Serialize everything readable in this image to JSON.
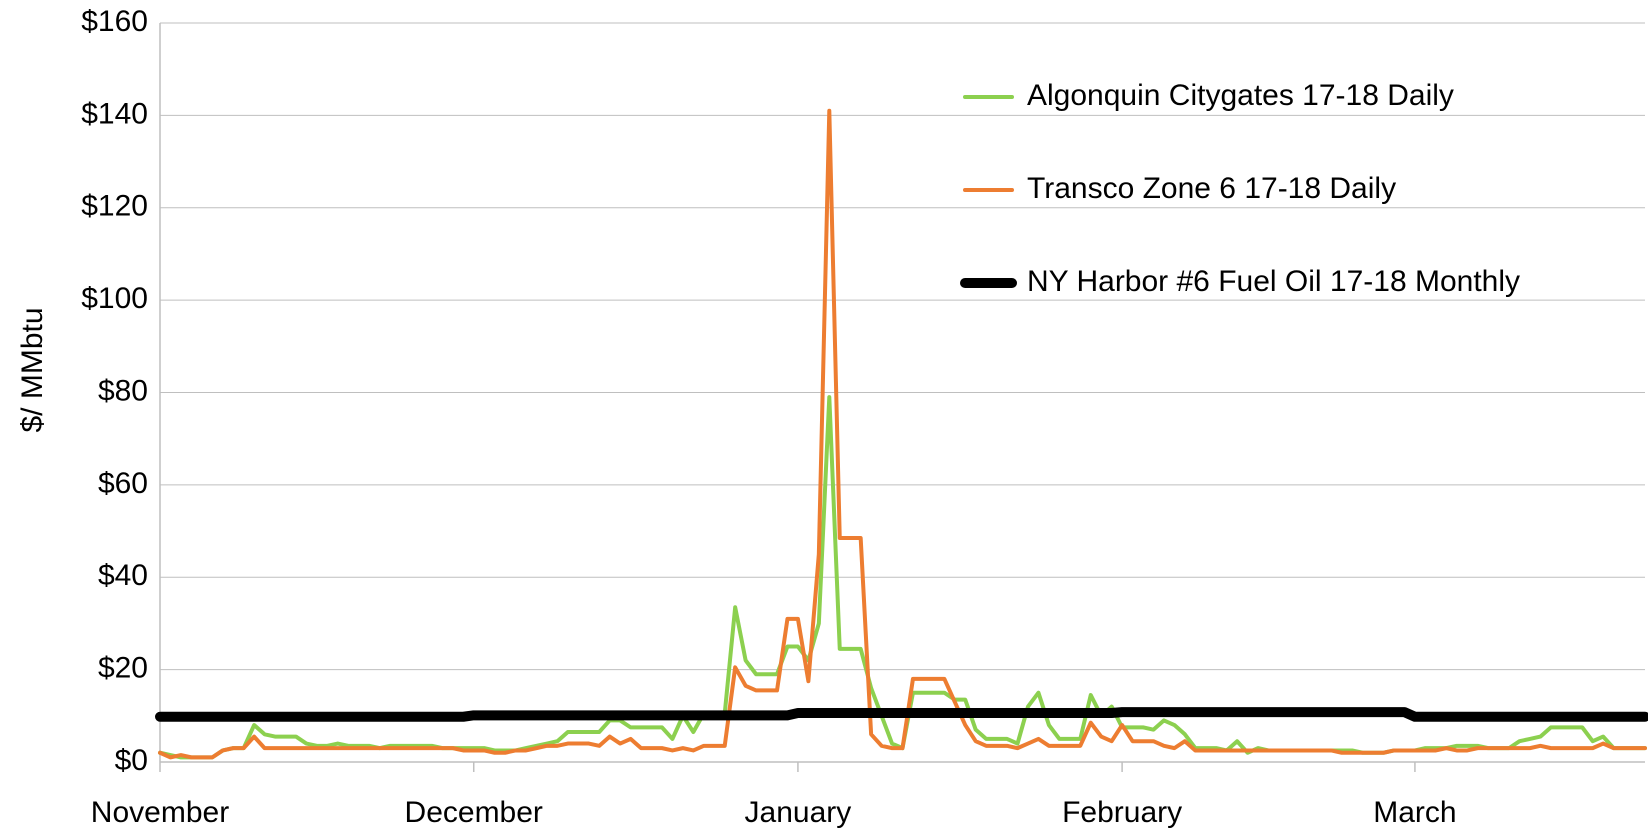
{
  "chart_data": {
    "type": "line",
    "y_label": "$/ MMbtu",
    "categories": [
      "November",
      null,
      null,
      null,
      null,
      null,
      null,
      null,
      null,
      null,
      null,
      null,
      null,
      null,
      null,
      null,
      null,
      null,
      null,
      null,
      null,
      null,
      null,
      null,
      null,
      null,
      null,
      null,
      null,
      null,
      "December",
      null,
      null,
      null,
      null,
      null,
      null,
      null,
      null,
      null,
      null,
      null,
      null,
      null,
      null,
      null,
      null,
      null,
      null,
      null,
      null,
      null,
      null,
      null,
      null,
      null,
      null,
      null,
      null,
      null,
      null,
      "January",
      null,
      null,
      null,
      null,
      null,
      null,
      null,
      null,
      null,
      null,
      null,
      null,
      null,
      null,
      null,
      null,
      null,
      null,
      null,
      null,
      null,
      null,
      null,
      null,
      null,
      null,
      null,
      null,
      null,
      null,
      "February",
      null,
      null,
      null,
      null,
      null,
      null,
      null,
      null,
      null,
      null,
      null,
      null,
      null,
      null,
      null,
      null,
      null,
      null,
      null,
      null,
      null,
      null,
      null,
      null,
      null,
      null,
      null,
      "March",
      null,
      null,
      null,
      null,
      null,
      null,
      null,
      null,
      null,
      null,
      null,
      null,
      null,
      null,
      null,
      null,
      null,
      null,
      null,
      null,
      null,
      null
    ],
    "series": [
      {
        "name": "Algonquin Citygates 17-18 Daily",
        "color": "#8cd04f",
        "width": 4,
        "values": [
          2,
          1.5,
          1,
          1,
          1,
          1,
          2.5,
          3,
          3,
          8,
          6,
          5.5,
          5.5,
          5.5,
          4,
          3.5,
          3.5,
          4,
          3.5,
          3.5,
          3.5,
          3,
          3.5,
          3.5,
          3.5,
          3.5,
          3.5,
          3,
          3,
          3,
          3,
          3,
          2.5,
          2.5,
          2.5,
          3,
          3.5,
          4,
          4.5,
          6.5,
          6.5,
          6.5,
          6.5,
          9,
          9,
          7.5,
          7.5,
          7.5,
          7.5,
          5,
          10,
          6.5,
          10.5,
          10.5,
          10.5,
          33.5,
          22,
          19,
          19,
          19,
          25,
          25,
          22,
          30,
          79,
          24.5,
          24.5,
          24.5,
          16,
          10,
          4,
          3,
          15,
          15,
          15,
          15,
          13.5,
          13.5,
          7,
          5,
          5,
          5,
          4,
          12,
          15,
          8,
          5,
          5,
          5,
          14.5,
          10,
          12,
          7.5,
          7.5,
          7.5,
          7,
          9,
          8,
          6,
          3,
          3,
          3,
          2.5,
          4.5,
          2,
          3,
          2.5,
          2.5,
          2.5,
          2.5,
          2.5,
          2.5,
          2.5,
          2.5,
          2.5,
          2,
          2,
          2,
          2.5,
          2.5,
          2.5,
          3,
          3,
          3,
          3.5,
          3.5,
          3.5,
          3,
          3,
          3,
          4.5,
          5,
          5.5,
          7.5,
          7.5,
          7.5,
          7.5,
          4.5,
          5.5,
          3,
          3,
          3,
          3
        ]
      },
      {
        "name": "Transco Zone 6 17-18 Daily",
        "color": "#ed7d31",
        "width": 4,
        "values": [
          2,
          1,
          1.5,
          1,
          1,
          1,
          2.5,
          3,
          3,
          5.5,
          3,
          3,
          3,
          3,
          3,
          3,
          3,
          3,
          3,
          3,
          3,
          3,
          3,
          3,
          3,
          3,
          3,
          3,
          3,
          2.5,
          2.5,
          2.5,
          2,
          2,
          2.5,
          2.5,
          3,
          3.5,
          3.5,
          4,
          4,
          4,
          3.5,
          5.5,
          4,
          5,
          3,
          3,
          3,
          2.5,
          3,
          2.5,
          3.5,
          3.5,
          3.5,
          20.5,
          16.5,
          15.5,
          15.5,
          15.5,
          31,
          31,
          17.5,
          45,
          141,
          48.5,
          48.5,
          48.5,
          6,
          3.5,
          3,
          3,
          18,
          18,
          18,
          18,
          13,
          8,
          4.5,
          3.5,
          3.5,
          3.5,
          3,
          4,
          5,
          3.5,
          3.5,
          3.5,
          3.5,
          8.5,
          5.5,
          4.5,
          8,
          4.5,
          4.5,
          4.5,
          3.5,
          3,
          4.5,
          2.5,
          2.5,
          2.5,
          2.5,
          2.5,
          2.5,
          2.5,
          2.5,
          2.5,
          2.5,
          2.5,
          2.5,
          2.5,
          2.5,
          2,
          2,
          2,
          2,
          2,
          2.5,
          2.5,
          2.5,
          2.5,
          2.5,
          3,
          2.5,
          2.5,
          3,
          3,
          3,
          3,
          3,
          3,
          3.5,
          3,
          3,
          3,
          3,
          3,
          4,
          3,
          3,
          3,
          3
        ]
      },
      {
        "name": "NY Harbor #6 Fuel Oil 17-18 Monthly",
        "color": "#000000",
        "width": 10,
        "values": [
          9.8,
          9.8,
          9.8,
          9.8,
          9.8,
          9.8,
          9.8,
          9.8,
          9.8,
          9.8,
          9.8,
          9.8,
          9.8,
          9.8,
          9.8,
          9.8,
          9.8,
          9.8,
          9.8,
          9.8,
          9.8,
          9.8,
          9.8,
          9.8,
          9.8,
          9.8,
          9.8,
          9.8,
          9.8,
          9.8,
          10.1,
          10.1,
          10.1,
          10.1,
          10.1,
          10.1,
          10.1,
          10.1,
          10.1,
          10.1,
          10.1,
          10.1,
          10.1,
          10.1,
          10.1,
          10.1,
          10.1,
          10.1,
          10.1,
          10.1,
          10.1,
          10.1,
          10.1,
          10.1,
          10.1,
          10.1,
          10.1,
          10.1,
          10.1,
          10.1,
          10.1,
          10.6,
          10.6,
          10.6,
          10.6,
          10.6,
          10.6,
          10.6,
          10.6,
          10.6,
          10.6,
          10.6,
          10.6,
          10.6,
          10.6,
          10.6,
          10.6,
          10.6,
          10.6,
          10.6,
          10.6,
          10.6,
          10.6,
          10.6,
          10.6,
          10.6,
          10.6,
          10.6,
          10.6,
          10.6,
          10.6,
          10.6,
          10.8,
          10.8,
          10.8,
          10.8,
          10.8,
          10.8,
          10.8,
          10.8,
          10.8,
          10.8,
          10.8,
          10.8,
          10.8,
          10.8,
          10.8,
          10.8,
          10.8,
          10.8,
          10.8,
          10.8,
          10.8,
          10.8,
          10.8,
          10.8,
          10.8,
          10.8,
          10.8,
          10.8,
          9.8,
          9.8,
          9.8,
          9.8,
          9.8,
          9.8,
          9.8,
          9.8,
          9.8,
          9.8,
          9.8,
          9.8,
          9.8,
          9.8,
          9.8,
          9.8,
          9.8,
          9.8,
          9.8,
          9.8,
          9.8,
          9.8,
          9.8
        ]
      }
    ],
    "ylim": [
      0,
      160
    ],
    "yticks": [
      {
        "value": 0,
        "label": "$0"
      },
      {
        "value": 20,
        "label": "$20"
      },
      {
        "value": 40,
        "label": "$40"
      },
      {
        "value": 60,
        "label": "$60"
      },
      {
        "value": 80,
        "label": "$80"
      },
      {
        "value": 100,
        "label": "$100"
      },
      {
        "value": 120,
        "label": "$120"
      },
      {
        "value": 140,
        "label": "$140"
      },
      {
        "value": 160,
        "label": "$160"
      }
    ],
    "grid": true,
    "legend": "upper right"
  }
}
